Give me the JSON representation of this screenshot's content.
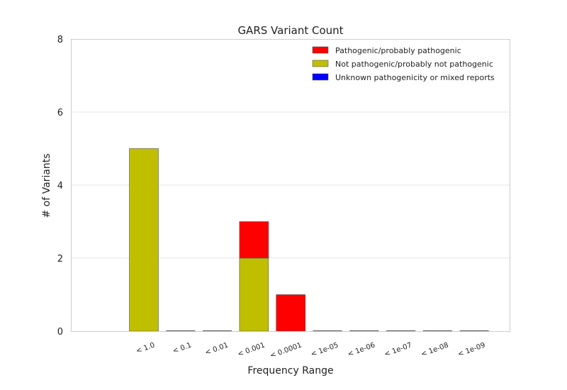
{
  "chart_data": {
    "type": "bar",
    "stacked": true,
    "title": "GARS Variant Count",
    "xlabel": "Frequency Range",
    "ylabel": "# of Variants",
    "categories": [
      "< 1.0",
      "< 0.1",
      "< 0.01",
      "< 0.001",
      "< 0.0001",
      "< 1e-05",
      "< 1e-06",
      "< 1e-07",
      "< 1e-08",
      "< 1e-09"
    ],
    "ylim": [
      0,
      8
    ],
    "yticks": [
      0,
      2,
      4,
      6,
      8
    ],
    "grid": "horizontal",
    "legend_position": "top-right",
    "series": [
      {
        "name": "Not pathogenic/probably not pathogenic",
        "color": "#bfbf00",
        "values": [
          5,
          0,
          0,
          2,
          0,
          0,
          0,
          0,
          0,
          0
        ]
      },
      {
        "name": "Pathogenic/probably pathogenic",
        "color": "#ff0000",
        "values": [
          0,
          0,
          0,
          1,
          1,
          0,
          0,
          0,
          0,
          0
        ]
      },
      {
        "name": "Unknown pathogenicity or mixed reports",
        "color": "#0000ff",
        "values": [
          0,
          0,
          0,
          0,
          0,
          0,
          0,
          0,
          0,
          0
        ]
      }
    ],
    "legend_order": [
      1,
      0,
      2
    ]
  }
}
